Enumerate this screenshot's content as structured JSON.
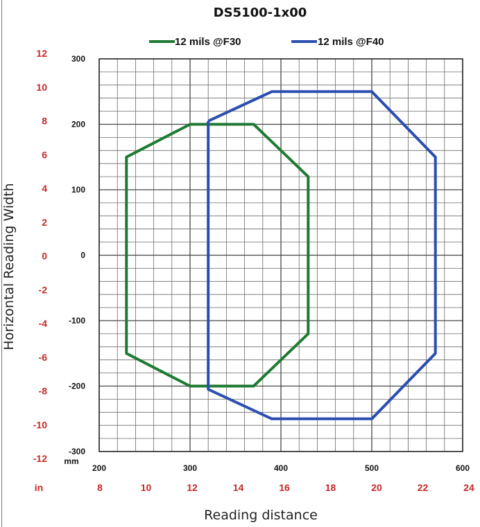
{
  "chart_data": {
    "type": "line",
    "title": "DS5100-1x00",
    "xlabel": "Reading distance",
    "ylabel": "Horizontal Reading Width",
    "xlim": [
      200,
      600
    ],
    "ylim": [
      -300,
      300
    ],
    "x_ticks_mm": [
      200,
      300,
      400,
      500,
      600
    ],
    "y_ticks_mm": [
      300,
      200,
      100,
      0,
      -100,
      -200,
      -300
    ],
    "x_unit_mm": "mm",
    "x_unit_in": "in",
    "x_ticks_in": [
      8,
      10,
      12,
      14,
      16,
      18,
      20,
      22,
      24
    ],
    "y_ticks_in": [
      12,
      10,
      8,
      6,
      4,
      2,
      0,
      -2,
      -4,
      -6,
      -8,
      -10,
      -12
    ],
    "grid": true,
    "legend_position": "top",
    "series": [
      {
        "name": "12 mils @F30",
        "color": "#1e7a32",
        "points": [
          [
            300,
            200
          ],
          [
            370,
            200
          ],
          [
            430,
            120
          ],
          [
            430,
            -120
          ],
          [
            370,
            -200
          ],
          [
            300,
            -200
          ],
          [
            230,
            -150
          ],
          [
            230,
            150
          ],
          [
            300,
            200
          ]
        ]
      },
      {
        "name": "12 mils @F40",
        "color": "#2b4fb0",
        "points": [
          [
            320,
            205
          ],
          [
            390,
            250
          ],
          [
            500,
            250
          ],
          [
            570,
            150
          ],
          [
            570,
            -150
          ],
          [
            500,
            -250
          ],
          [
            390,
            -250
          ],
          [
            320,
            -205
          ],
          [
            320,
            205
          ]
        ]
      }
    ]
  }
}
